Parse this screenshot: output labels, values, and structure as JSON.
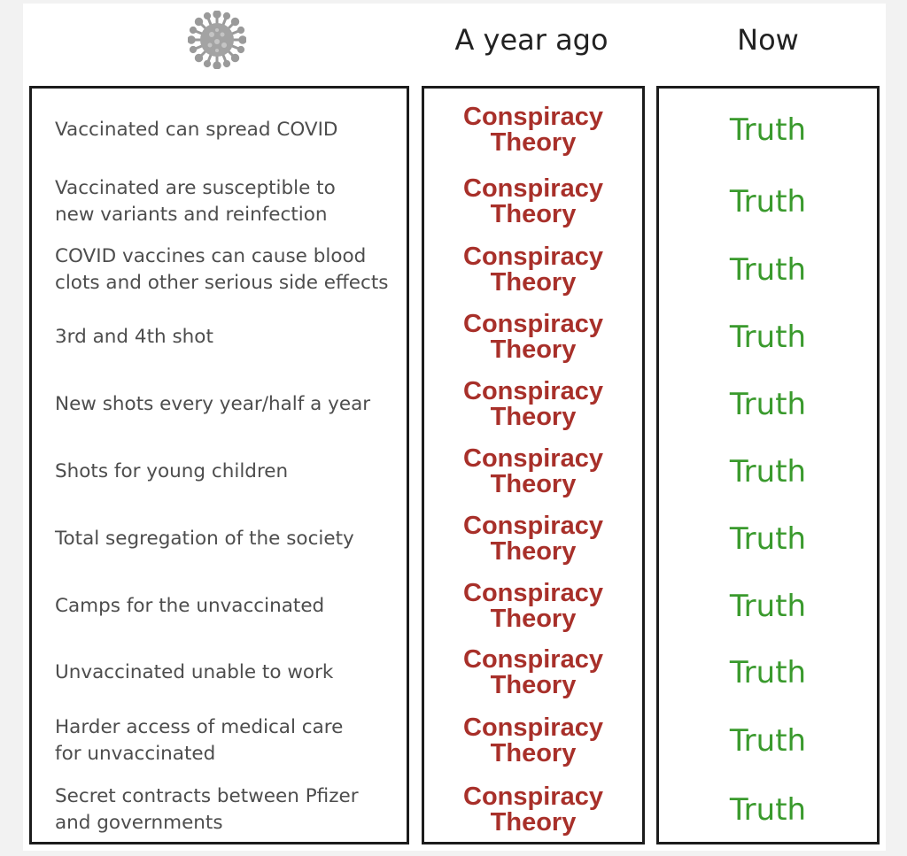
{
  "header": {
    "icon": "virus-icon",
    "col_then": "A year ago",
    "col_now": "Now"
  },
  "colors": {
    "conspiracy": "#a8302a",
    "truth": "#3a9a2d",
    "statement_text": "#4d4d4d",
    "border": "#1c1c1c"
  },
  "rows": [
    {
      "statement": "Vaccinated can spread COVID",
      "then_line1": "Conspiracy",
      "then_line2": "Theory",
      "now": "Truth"
    },
    {
      "statement": "Vaccinated are susceptible to\nnew variants and reinfection",
      "then_line1": "Conspiracy",
      "then_line2": "Theory",
      "now": "Truth"
    },
    {
      "statement": "COVID vaccines can cause blood\nclots and other serious side effects",
      "then_line1": "Conspiracy",
      "then_line2": "Theory",
      "now": "Truth"
    },
    {
      "statement": "3rd and 4th shot",
      "then_line1": "Conspiracy",
      "then_line2": "Theory",
      "now": "Truth"
    },
    {
      "statement": "New shots every year/half a year",
      "then_line1": "Conspiracy",
      "then_line2": "Theory",
      "now": "Truth"
    },
    {
      "statement": "Shots for young children",
      "then_line1": "Conspiracy",
      "then_line2": "Theory",
      "now": "Truth"
    },
    {
      "statement": "Total segregation of the society",
      "then_line1": "Conspiracy",
      "then_line2": "Theory",
      "now": "Truth"
    },
    {
      "statement": "Camps for the unvaccinated",
      "then_line1": "Conspiracy",
      "then_line2": "Theory",
      "now": "Truth"
    },
    {
      "statement": "Unvaccinated unable to work",
      "then_line1": "Conspiracy",
      "then_line2": "Theory",
      "now": "Truth"
    },
    {
      "statement": "Harder access of medical care\nfor unvaccinated",
      "then_line1": "Conspiracy",
      "then_line2": "Theory",
      "now": "Truth"
    },
    {
      "statement": "Secret contracts between Pfizer\nand governments",
      "then_line1": "Conspiracy",
      "then_line2": "Theory",
      "now": "Truth"
    }
  ]
}
